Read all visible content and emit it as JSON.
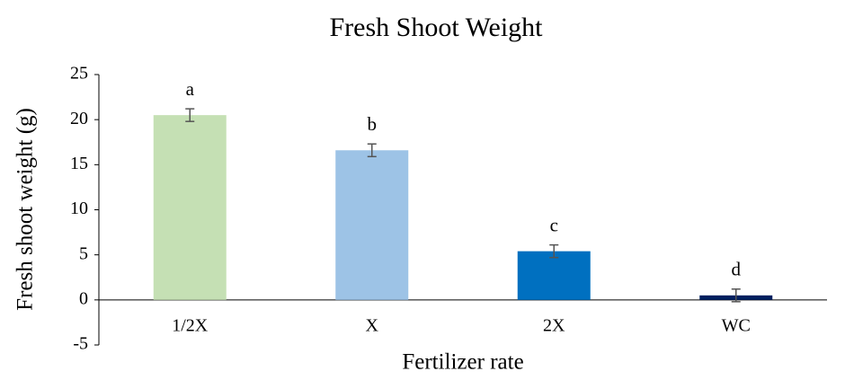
{
  "chart_data": {
    "type": "bar",
    "title": "Fresh Shoot Weight",
    "x_label": "Fertilizer rate",
    "y_label": "Fresh shoot weight (g)",
    "categories": [
      "1/2X",
      "X",
      "2X",
      "WC"
    ],
    "values": [
      20.5,
      16.6,
      5.4,
      0.5
    ],
    "errors": [
      0.7,
      0.7,
      0.7,
      0.7
    ],
    "annotations": [
      "a",
      "b",
      "c",
      "d"
    ],
    "colors": [
      "#c5e0b4",
      "#9dc3e6",
      "#0070c0",
      "#002060"
    ],
    "ylim": [
      -5,
      25
    ],
    "yticks": [
      -5,
      0,
      5,
      10,
      15,
      20,
      25
    ]
  }
}
